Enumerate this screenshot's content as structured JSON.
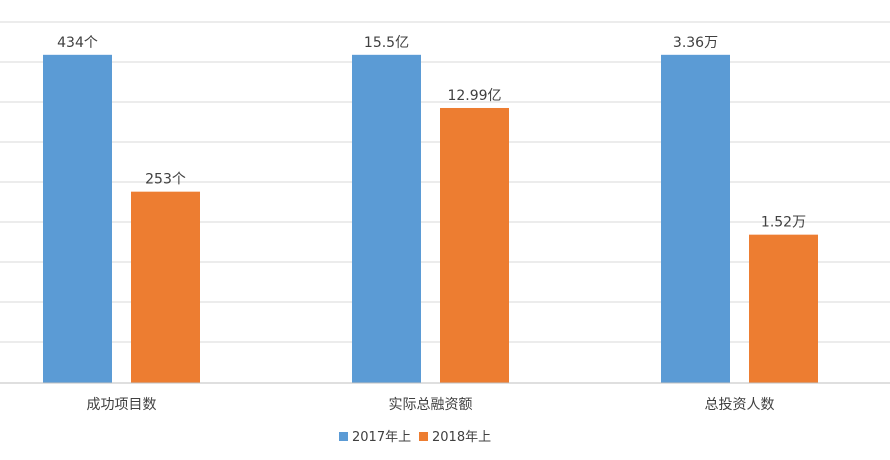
{
  "chart_data": {
    "type": "bar",
    "categories": [
      "成功项目数",
      "实际总融资额",
      "总投资人数"
    ],
    "series": [
      {
        "name": "2017年上",
        "color": "#5B9BD5",
        "values": [
          100,
          100,
          100
        ],
        "labels": [
          "434个",
          "15.5亿",
          "3.36万"
        ]
      },
      {
        "name": "2018年上",
        "color": "#ED7D31",
        "values": [
          58.3,
          83.8,
          45.2
        ],
        "labels": [
          "253个",
          "12.99亿",
          "1.52万"
        ]
      }
    ],
    "ylim": [
      0,
      110
    ],
    "grid": true,
    "legend": "bottom",
    "colors": {
      "grid": "#D9D9D9",
      "axis": "#BFBFBF",
      "text": "#404040"
    }
  }
}
